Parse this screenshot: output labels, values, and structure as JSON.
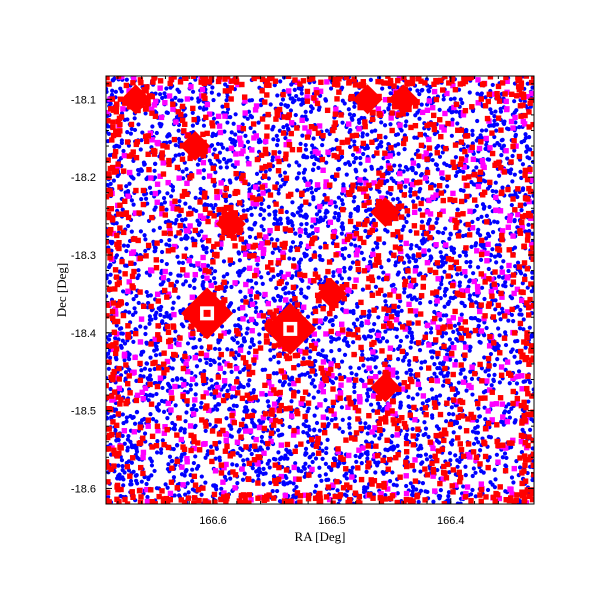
{
  "chart_data": {
    "type": "scatter",
    "xlabel": "RA [Deg]",
    "ylabel": "Dec [Deg]",
    "xlim": [
      166.69,
      166.33
    ],
    "ylim": [
      -18.62,
      -18.07
    ],
    "x_ticks": [
      "166.6",
      "166.5",
      "166.4"
    ],
    "x_tick_values": [
      166.6,
      166.5,
      166.4
    ],
    "y_ticks": [
      "-18.1",
      "-18.2",
      "-18.3",
      "-18.4",
      "-18.5",
      "-18.6"
    ],
    "y_tick_values": [
      -18.1,
      -18.2,
      -18.3,
      -18.4,
      -18.5,
      -18.6
    ],
    "grid": false,
    "legend": "none",
    "series": [
      {
        "color": "#0000ff",
        "marker": "small-circle",
        "count": 4200,
        "approx_spread": "uniform over field"
      },
      {
        "color": "#ff00ff",
        "marker": "square",
        "count": 650,
        "approx_spread": "uniform over field"
      },
      {
        "color": "#ff0000",
        "marker": "square",
        "count": 1500,
        "approx_spread": "uniform over field, denser along border, clustered around bright sources"
      }
    ],
    "bright_sources": [
      {
        "x": 166.605,
        "y": -18.375,
        "color": "#ff0000"
      },
      {
        "x": 166.535,
        "y": -18.395,
        "color": "#ff0000"
      },
      {
        "x": 166.585,
        "y": -18.26,
        "color": "#ff0000"
      },
      {
        "x": 166.455,
        "y": -18.245,
        "color": "#ff0000"
      },
      {
        "x": 166.455,
        "y": -18.47,
        "color": "#ff0000"
      },
      {
        "x": 166.47,
        "y": -18.1,
        "color": "#ff0000"
      },
      {
        "x": 166.44,
        "y": -18.1,
        "color": "#ff0000"
      },
      {
        "x": 166.665,
        "y": -18.1,
        "color": "#ff0000"
      },
      {
        "x": 166.5,
        "y": -18.35,
        "color": "#ff0000"
      },
      {
        "x": 166.615,
        "y": -18.16,
        "color": "#ff0000"
      }
    ]
  }
}
